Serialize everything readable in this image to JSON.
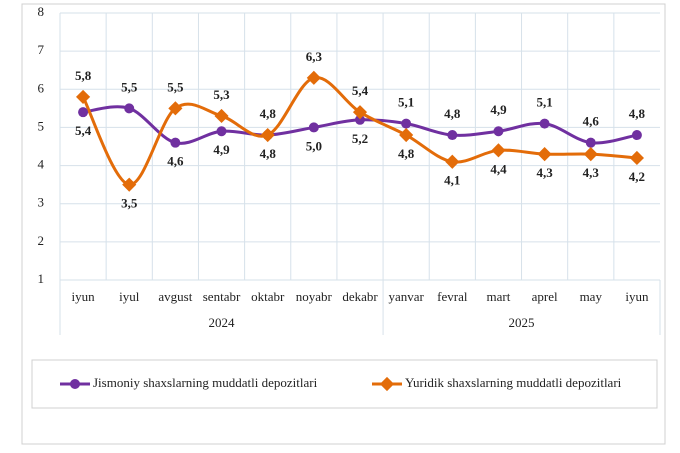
{
  "chart_data": {
    "type": "line",
    "category_groups": [
      {
        "label": "2024",
        "categories": [
          "iyun",
          "iyul",
          "avgust",
          "sentabr",
          "oktabr",
          "noyabr",
          "dekabr"
        ]
      },
      {
        "label": "2025",
        "categories": [
          "yanvar",
          "fevral",
          "mart",
          "aprel",
          "may",
          "iyun"
        ]
      }
    ],
    "series": [
      {
        "name": "Jismoniy shaxslarning muddatli depozitlari",
        "color": "#7030a0",
        "values": [
          5.4,
          5.5,
          4.6,
          4.9,
          4.8,
          5.0,
          5.2,
          5.1,
          4.8,
          4.9,
          5.1,
          4.6,
          4.8
        ],
        "value_labels": [
          "5,4",
          "5,5",
          "4,6",
          "4,9",
          "4,8",
          "5,0",
          "5,2",
          "5,1",
          "4,8",
          "4,9",
          "5,1",
          "4,6",
          "4,8"
        ]
      },
      {
        "name": "Yuridik shaxslarning muddatli depozitlari",
        "color": "#e36c09",
        "values": [
          5.8,
          3.5,
          5.5,
          5.3,
          4.8,
          6.3,
          5.4,
          4.8,
          4.1,
          4.4,
          4.3,
          4.3,
          4.2
        ],
        "value_labels": [
          "5,8",
          "3,5",
          "5,5",
          "5,3",
          "4,8",
          "6,3",
          "5,4",
          "4,8",
          "4,1",
          "4,4",
          "4,3",
          "4,3",
          "4,2"
        ]
      }
    ],
    "ylim": [
      1,
      8
    ],
    "yticks": [
      1,
      2,
      3,
      4,
      5,
      6,
      7,
      8
    ],
    "grid": true,
    "smooth": true
  }
}
